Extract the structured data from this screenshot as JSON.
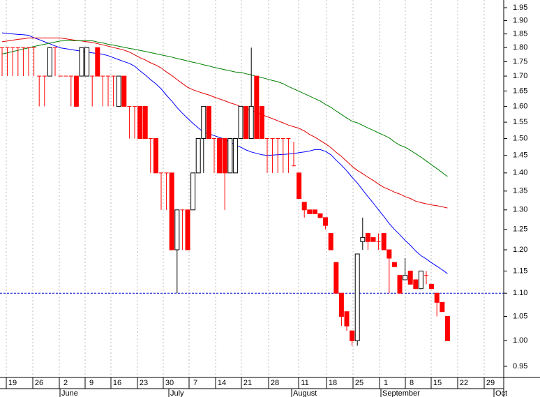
{
  "chart_data": {
    "type": "candlestick",
    "log": true,
    "grid": true,
    "ylim": [
      0.95,
      1.95
    ],
    "yticks": [
      0.95,
      {
        "value": 1,
        "label": "1.00"
      },
      1.05,
      {
        "value": 1.1,
        "label": "1.10"
      },
      1.15,
      {
        "value": 1.2,
        "label": "1.20"
      },
      1.25,
      {
        "value": 1.3,
        "label": "1.30"
      },
      1.35,
      {
        "value": 1.4,
        "label": "1.40"
      },
      1.45,
      {
        "value": 1.5,
        "label": "1.50"
      },
      1.55,
      {
        "value": 1.6,
        "label": "1.60"
      },
      1.65,
      {
        "value": 1.7,
        "label": "1.70"
      },
      1.75,
      {
        "value": 1.8,
        "label": "1.80"
      },
      1.85,
      {
        "value": 1.9,
        "label": "1.90"
      },
      1.95
    ],
    "xticks": [
      "19",
      "26",
      "2",
      "9",
      "16",
      "23",
      "30",
      "7",
      "14",
      "21",
      "28",
      "11",
      "18",
      "25",
      "1",
      "8",
      "15",
      "22",
      "29"
    ],
    "months": [
      "June",
      "July",
      "August",
      "September",
      "Oct"
    ],
    "up_color": "#000000",
    "down_color": "#ff0000",
    "open": [
      1.8,
      1.8,
      1.8,
      1.8,
      1.8,
      1.8,
      1.8,
      1.7,
      1.7,
      1.7,
      1.8,
      1.7,
      1.7,
      1.7,
      1.7,
      1.7,
      1.7,
      1.7,
      1.8,
      1.7,
      1.7,
      1.7,
      1.6,
      1.7,
      1.6,
      1.6,
      1.6,
      1.6,
      1.5,
      1.5,
      1.4,
      1.4,
      1.4,
      1.2,
      1.3,
      1.3,
      1.3,
      1.4,
      1.5,
      1.6,
      1.5,
      1.5,
      1.5,
      1.4,
      1.4,
      1.5,
      1.6,
      1.5,
      1.7,
      1.6,
      1.5,
      1.5,
      1.5,
      1.5,
      1.5,
      1.42,
      1.4,
      1.32,
      1.3,
      1.3,
      1.29,
      1.28,
      1.24,
      1.17,
      1.1,
      1.06,
      1.02,
      1.0,
      1.22,
      1.24,
      1.23,
      1.22,
      1.24,
      1.2,
      1.17,
      1.14,
      1.13,
      1.15,
      1.13,
      1.11,
      1.14,
      1.12,
      1.1,
      1.08,
      1.05
    ],
    "high": [
      1.8,
      1.8,
      1.8,
      1.8,
      1.8,
      1.8,
      1.8,
      1.7,
      1.7,
      1.8,
      1.8,
      1.7,
      1.7,
      1.7,
      1.7,
      1.8,
      1.8,
      1.7,
      1.8,
      1.7,
      1.7,
      1.7,
      1.7,
      1.7,
      1.6,
      1.6,
      1.6,
      1.6,
      1.5,
      1.5,
      1.4,
      1.4,
      1.4,
      1.3,
      1.3,
      1.3,
      1.4,
      1.5,
      1.6,
      1.6,
      1.5,
      1.5,
      1.5,
      1.5,
      1.5,
      1.6,
      1.6,
      1.8,
      1.7,
      1.6,
      1.5,
      1.5,
      1.5,
      1.5,
      1.5,
      1.49,
      1.4,
      1.32,
      1.3,
      1.3,
      1.29,
      1.28,
      1.24,
      1.17,
      1.1,
      1.06,
      1.02,
      1.19,
      1.28,
      1.24,
      1.23,
      1.24,
      1.24,
      1.2,
      1.17,
      1.14,
      1.18,
      1.15,
      1.13,
      1.15,
      1.15,
      1.12,
      1.1,
      1.08,
      1.05
    ],
    "low": [
      1.7,
      1.7,
      1.7,
      1.7,
      1.7,
      1.7,
      1.7,
      1.6,
      1.6,
      1.7,
      1.7,
      1.7,
      1.7,
      1.6,
      1.6,
      1.7,
      1.7,
      1.6,
      1.7,
      1.6,
      1.6,
      1.6,
      1.6,
      1.6,
      1.5,
      1.5,
      1.5,
      1.5,
      1.4,
      1.4,
      1.3,
      1.3,
      1.2,
      1.1,
      1.2,
      1.2,
      1.3,
      1.4,
      1.4,
      1.5,
      1.4,
      1.4,
      1.3,
      1.4,
      1.4,
      1.5,
      1.5,
      1.5,
      1.5,
      1.5,
      1.4,
      1.4,
      1.4,
      1.4,
      1.4,
      1.42,
      1.33,
      1.28,
      1.29,
      1.29,
      1.28,
      1.25,
      1.2,
      1.1,
      1.03,
      1.02,
      0.99,
      0.99,
      1.2,
      1.2,
      1.22,
      1.2,
      1.2,
      1.1,
      1.16,
      1.1,
      1.13,
      1.12,
      1.11,
      1.11,
      1.12,
      1.11,
      1.05,
      1.06,
      1.0
    ],
    "close": [
      1.8,
      1.8,
      1.8,
      1.8,
      1.8,
      1.8,
      1.8,
      1.7,
      1.7,
      1.8,
      1.8,
      1.7,
      1.7,
      1.7,
      1.6,
      1.8,
      1.8,
      1.7,
      1.7,
      1.7,
      1.7,
      1.7,
      1.7,
      1.6,
      1.6,
      1.6,
      1.5,
      1.5,
      1.5,
      1.4,
      1.4,
      1.4,
      1.2,
      1.3,
      1.3,
      1.2,
      1.4,
      1.5,
      1.6,
      1.5,
      1.5,
      1.4,
      1.4,
      1.5,
      1.5,
      1.6,
      1.5,
      1.6,
      1.5,
      1.5,
      1.5,
      1.5,
      1.5,
      1.5,
      1.5,
      1.42,
      1.33,
      1.3,
      1.29,
      1.29,
      1.28,
      1.26,
      1.2,
      1.1,
      1.05,
      1.03,
      1.0,
      1.19,
      1.23,
      1.22,
      1.22,
      1.22,
      1.2,
      1.18,
      1.16,
      1.1,
      1.14,
      1.12,
      1.11,
      1.15,
      1.14,
      1.11,
      1.08,
      1.06,
      1.0
    ],
    "lines": [
      {
        "color": "#0000ff",
        "values": [
          1.854,
          1.852,
          1.85,
          1.848,
          1.847,
          1.845,
          1.836,
          1.829,
          1.821,
          1.814,
          1.806,
          1.799,
          1.796,
          1.793,
          1.79,
          1.787,
          1.784,
          1.781,
          1.779,
          1.776,
          1.771,
          1.764,
          1.757,
          1.75,
          1.744,
          1.734,
          1.718,
          1.704,
          1.688,
          1.674,
          1.657,
          1.636,
          1.617,
          1.596,
          1.578,
          1.562,
          1.546,
          1.532,
          1.519,
          1.514,
          1.509,
          1.503,
          1.498,
          1.489,
          1.481,
          1.474,
          1.466,
          1.46,
          1.456,
          1.452,
          1.45,
          1.451,
          1.452,
          1.453,
          1.454,
          1.455,
          1.458,
          1.46,
          1.463,
          1.467,
          1.467,
          1.462,
          1.452,
          1.436,
          1.422,
          1.406,
          1.388,
          1.372,
          1.353,
          1.335,
          1.318,
          1.3,
          1.283,
          1.265,
          1.25,
          1.237,
          1.223,
          1.211,
          1.197,
          1.186,
          1.178,
          1.169,
          1.161,
          1.153,
          1.144
        ]
      },
      {
        "color": "#e00000",
        "values": [
          1.821,
          1.824,
          1.827,
          1.83,
          1.832,
          1.835,
          1.835,
          1.835,
          1.835,
          1.835,
          1.835,
          1.835,
          1.832,
          1.829,
          1.826,
          1.824,
          1.821,
          1.819,
          1.814,
          1.81,
          1.805,
          1.8,
          1.796,
          1.791,
          1.784,
          1.774,
          1.764,
          1.756,
          1.746,
          1.738,
          1.728,
          1.714,
          1.702,
          1.688,
          1.675,
          1.662,
          1.654,
          1.648,
          1.642,
          1.637,
          1.63,
          1.624,
          1.618,
          1.611,
          1.606,
          1.599,
          1.592,
          1.587,
          1.58,
          1.574,
          1.567,
          1.561,
          1.554,
          1.548,
          1.541,
          1.536,
          1.531,
          1.523,
          1.512,
          1.504,
          1.494,
          1.484,
          1.473,
          1.459,
          1.447,
          1.433,
          1.419,
          1.407,
          1.398,
          1.388,
          1.379,
          1.369,
          1.36,
          1.354,
          1.347,
          1.342,
          1.335,
          1.33,
          1.323,
          1.319,
          1.316,
          1.313,
          1.311,
          1.308,
          1.305
        ]
      },
      {
        "color": "#008000",
        "values": [
          1.777,
          1.781,
          1.786,
          1.79,
          1.795,
          1.799,
          1.804,
          1.808,
          1.812,
          1.816,
          1.82,
          1.824,
          1.825,
          1.825,
          1.825,
          1.825,
          1.825,
          1.825,
          1.82,
          1.817,
          1.812,
          1.809,
          1.805,
          1.801,
          1.797,
          1.794,
          1.79,
          1.786,
          1.782,
          1.778,
          1.774,
          1.77,
          1.766,
          1.761,
          1.757,
          1.752,
          1.748,
          1.744,
          1.739,
          1.735,
          1.73,
          1.726,
          1.722,
          1.718,
          1.714,
          1.713,
          1.708,
          1.704,
          1.699,
          1.695,
          1.69,
          1.685,
          1.681,
          1.674,
          1.665,
          1.657,
          1.649,
          1.641,
          1.633,
          1.625,
          1.617,
          1.606,
          1.597,
          1.585,
          1.574,
          1.563,
          1.553,
          1.548,
          1.54,
          1.532,
          1.525,
          1.517,
          1.51,
          1.502,
          1.49,
          1.48,
          1.474,
          1.465,
          1.455,
          1.445,
          1.434,
          1.423,
          1.412,
          1.401,
          1.39
        ]
      }
    ],
    "hline": {
      "value": 1.1,
      "color": "#0000cc"
    }
  }
}
